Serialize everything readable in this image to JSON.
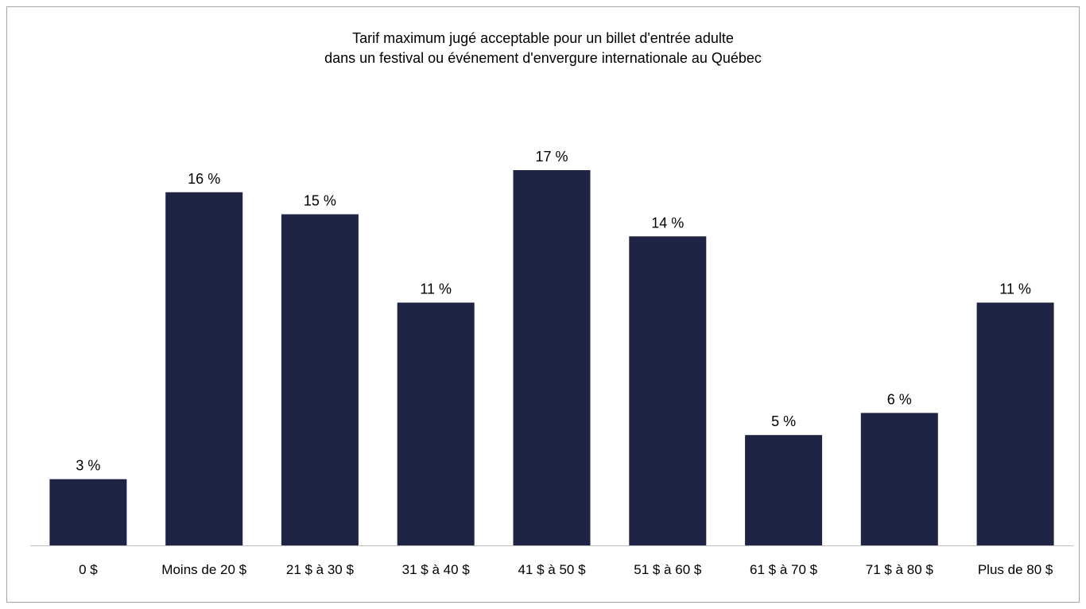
{
  "chart_data": {
    "type": "bar",
    "title_line1": "Tarif maximum jugé acceptable pour un billet d'entrée adulte",
    "title_line2": "dans un festival ou événement d'envergure internationale au Québec",
    "categories": [
      "0 $",
      "Moins de 20 $",
      "21 $ à 30 $",
      "31 $ à 40 $",
      "41 $ à 50 $",
      "51 $ à 60 $",
      "61 $ à 70 $",
      "71 $ à 80 $",
      "Plus de 80 $"
    ],
    "values": [
      3,
      16,
      15,
      11,
      17,
      14,
      5,
      6,
      11
    ],
    "data_labels": [
      "3 %",
      "16 %",
      "15 %",
      "11 %",
      "17 %",
      "14 %",
      "5 %",
      "6 %",
      "11 %"
    ],
    "ylim": [
      0,
      17
    ],
    "grid": false,
    "legend": "none",
    "bar_color": "#1f2344",
    "axis_color": "#bfbfbf"
  }
}
